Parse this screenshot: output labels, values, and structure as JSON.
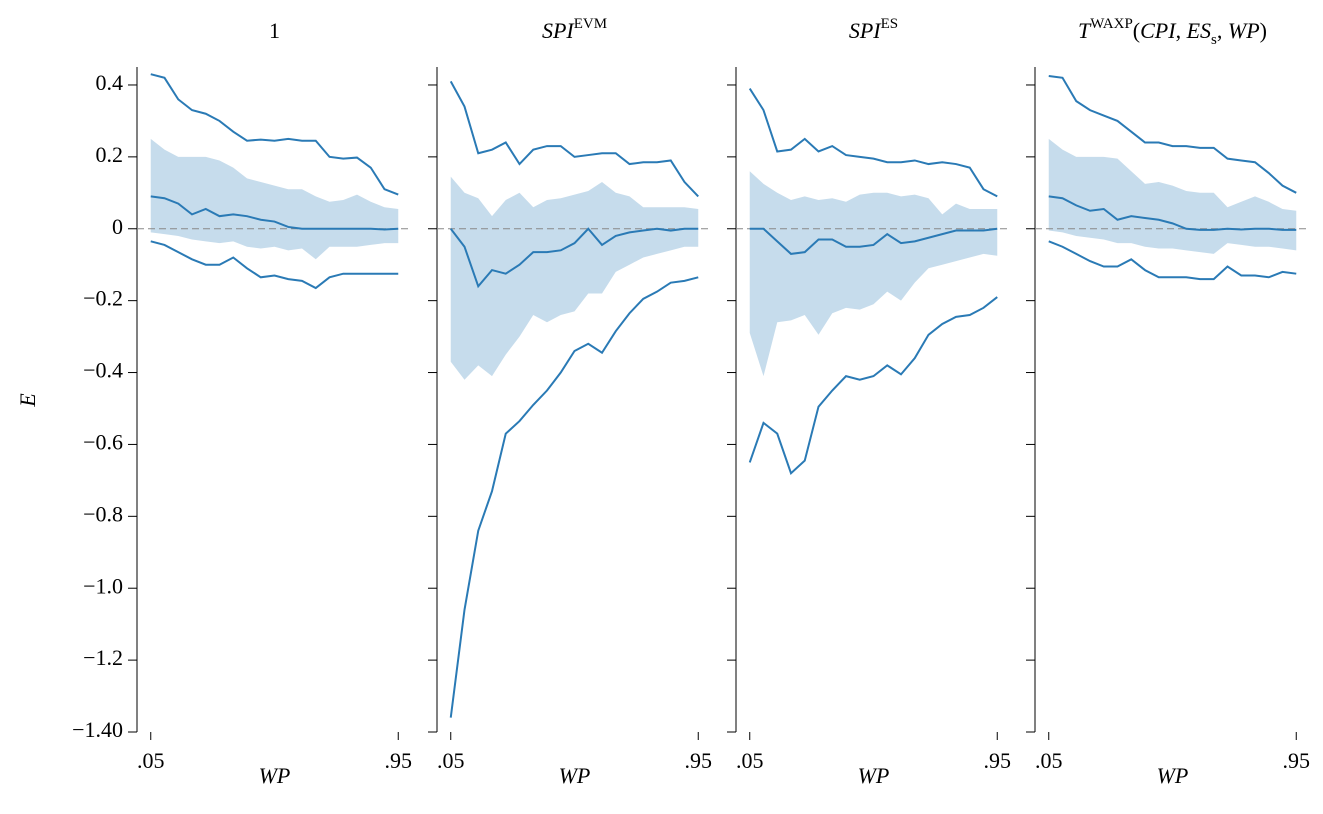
{
  "chart_data": [
    {
      "type": "line",
      "title": [
        {
          "text": "1"
        }
      ],
      "ylabel": "E",
      "xlabel": "WP",
      "x": [
        0.05,
        0.1,
        0.15,
        0.2,
        0.25,
        0.3,
        0.35,
        0.4,
        0.45,
        0.5,
        0.55,
        0.6,
        0.65,
        0.7,
        0.75,
        0.8,
        0.85,
        0.9,
        0.95
      ],
      "xlim": [
        0,
        1
      ],
      "xticks": [
        {
          "value": 0.05,
          "label": ".05"
        },
        {
          "value": 0.95,
          "label": ".95"
        }
      ],
      "ylim": [
        -1.4,
        0.45
      ],
      "yticks": [
        {
          "value": 0.4,
          "label": "0.4"
        },
        {
          "value": 0.2,
          "label": "0.2"
        },
        0,
        {
          "value": -0.2,
          "label": "−0.2"
        },
        {
          "value": -0.4,
          "label": "−0.4"
        },
        {
          "value": -0.6,
          "label": "−0.6"
        },
        {
          "value": -0.8,
          "label": "−0.8"
        },
        {
          "value": -1.0,
          "label": "−1.0"
        },
        {
          "value": -1.2,
          "label": "−1.2"
        },
        {
          "value": -1.4,
          "label": "−1.40"
        }
      ],
      "hline": 0,
      "series": [
        {
          "color": "#c6dcec",
          "upper": [
            0.25,
            0.22,
            0.2,
            0.2,
            0.2,
            0.19,
            0.17,
            0.14,
            0.13,
            0.12,
            0.11,
            0.11,
            0.09,
            0.075,
            0.08,
            0.095,
            0.075,
            0.06,
            0.055
          ],
          "lower": [
            -0.01,
            -0.015,
            -0.02,
            -0.03,
            -0.035,
            -0.04,
            -0.035,
            -0.05,
            -0.055,
            -0.05,
            -0.06,
            -0.055,
            -0.085,
            -0.05,
            -0.05,
            -0.05,
            -0.045,
            -0.04,
            -0.04
          ]
        },
        {
          "color": "#2a7ab5",
          "values": [
            0.43,
            0.42,
            0.36,
            0.33,
            0.32,
            0.3,
            0.27,
            0.245,
            0.248,
            0.245,
            0.25,
            0.245,
            0.245,
            0.2,
            0.195,
            0.198,
            0.17,
            0.11,
            0.095
          ]
        },
        {
          "color": "#2a7ab5",
          "values": [
            0.09,
            0.085,
            0.07,
            0.04,
            0.055,
            0.035,
            0.04,
            0.035,
            0.025,
            0.02,
            0.005,
            0,
            0,
            0,
            0,
            0,
            0,
            -0.002,
            0
          ]
        },
        {
          "color": "#2a7ab5",
          "values": [
            -0.035,
            -0.045,
            -0.065,
            -0.085,
            -0.1,
            -0.1,
            -0.08,
            -0.11,
            -0.135,
            -0.13,
            -0.14,
            -0.145,
            -0.165,
            -0.135,
            -0.125,
            -0.125,
            -0.125,
            -0.125,
            -0.125
          ]
        }
      ]
    },
    {
      "type": "line",
      "title": [
        {
          "text": "SPI",
          "italic": true
        },
        {
          "text": "EVM",
          "pos": "sup"
        }
      ],
      "xlabel": "WP",
      "x": [
        0.05,
        0.1,
        0.15,
        0.2,
        0.25,
        0.3,
        0.35,
        0.4,
        0.45,
        0.5,
        0.55,
        0.6,
        0.65,
        0.7,
        0.75,
        0.8,
        0.85,
        0.9,
        0.95
      ],
      "xlim": [
        0,
        1
      ],
      "xticks": [
        {
          "value": 0.05,
          "label": ".05"
        },
        {
          "value": 0.95,
          "label": ".95"
        }
      ],
      "ylim": [
        -1.4,
        0.45
      ],
      "hline": 0,
      "series": [
        {
          "color": "#c6dcec",
          "upper": [
            0.145,
            0.1,
            0.085,
            0.035,
            0.08,
            0.1,
            0.06,
            0.08,
            0.085,
            0.095,
            0.105,
            0.13,
            0.1,
            0.09,
            0.06,
            0.06,
            0.06,
            0.06,
            0.055
          ],
          "lower": [
            -0.37,
            -0.42,
            -0.38,
            -0.41,
            -0.35,
            -0.3,
            -0.24,
            -0.26,
            -0.24,
            -0.23,
            -0.18,
            -0.18,
            -0.12,
            -0.1,
            -0.08,
            -0.07,
            -0.06,
            -0.05,
            -0.05
          ]
        },
        {
          "color": "#2a7ab5",
          "values": [
            0.41,
            0.34,
            0.21,
            0.22,
            0.24,
            0.18,
            0.22,
            0.23,
            0.23,
            0.2,
            0.205,
            0.21,
            0.21,
            0.18,
            0.185,
            0.185,
            0.19,
            0.13,
            0.09
          ]
        },
        {
          "color": "#2a7ab5",
          "values": [
            0,
            -0.05,
            -0.16,
            -0.115,
            -0.125,
            -0.1,
            -0.065,
            -0.065,
            -0.06,
            -0.04,
            0,
            -0.045,
            -0.02,
            -0.01,
            -0.005,
            0,
            -0.005,
            0,
            0
          ]
        },
        {
          "color": "#2a7ab5",
          "values": [
            -1.36,
            -1.06,
            -0.84,
            -0.73,
            -0.57,
            -0.535,
            -0.49,
            -0.45,
            -0.4,
            -0.34,
            -0.32,
            -0.345,
            -0.285,
            -0.235,
            -0.195,
            -0.175,
            -0.15,
            -0.145,
            -0.135
          ]
        }
      ]
    },
    {
      "type": "line",
      "title": [
        {
          "text": "SPI",
          "italic": true
        },
        {
          "text": "ES",
          "pos": "sup"
        }
      ],
      "xlabel": "WP",
      "x": [
        0.05,
        0.1,
        0.15,
        0.2,
        0.25,
        0.3,
        0.35,
        0.4,
        0.45,
        0.5,
        0.55,
        0.6,
        0.65,
        0.7,
        0.75,
        0.8,
        0.85,
        0.9,
        0.95
      ],
      "xlim": [
        0,
        1
      ],
      "xticks": [
        {
          "value": 0.05,
          "label": ".05"
        },
        {
          "value": 0.95,
          "label": ".95"
        }
      ],
      "ylim": [
        -1.4,
        0.45
      ],
      "hline": 0,
      "series": [
        {
          "color": "#c6dcec",
          "upper": [
            0.16,
            0.125,
            0.1,
            0.08,
            0.09,
            0.08,
            0.085,
            0.075,
            0.095,
            0.1,
            0.1,
            0.09,
            0.095,
            0.085,
            0.04,
            0.07,
            0.055,
            0.055,
            0.055
          ],
          "lower": [
            -0.29,
            -0.41,
            -0.26,
            -0.255,
            -0.24,
            -0.295,
            -0.235,
            -0.22,
            -0.225,
            -0.21,
            -0.175,
            -0.2,
            -0.15,
            -0.11,
            -0.1,
            -0.09,
            -0.08,
            -0.07,
            -0.075
          ]
        },
        {
          "color": "#2a7ab5",
          "values": [
            0.39,
            0.33,
            0.215,
            0.22,
            0.25,
            0.215,
            0.23,
            0.205,
            0.2,
            0.195,
            0.185,
            0.185,
            0.19,
            0.18,
            0.185,
            0.18,
            0.17,
            0.11,
            0.09
          ]
        },
        {
          "color": "#2a7ab5",
          "values": [
            0,
            0,
            -0.035,
            -0.07,
            -0.065,
            -0.03,
            -0.03,
            -0.05,
            -0.05,
            -0.045,
            -0.015,
            -0.04,
            -0.035,
            -0.025,
            -0.015,
            -0.005,
            -0.005,
            -0.005,
            0
          ]
        },
        {
          "color": "#2a7ab5",
          "values": [
            -0.65,
            -0.54,
            -0.57,
            -0.68,
            -0.645,
            -0.495,
            -0.45,
            -0.41,
            -0.42,
            -0.41,
            -0.38,
            -0.405,
            -0.36,
            -0.295,
            -0.265,
            -0.245,
            -0.24,
            -0.22,
            -0.19
          ]
        }
      ]
    },
    {
      "type": "line",
      "title": [
        {
          "text": "T",
          "italic": true
        },
        {
          "text": "WAXP",
          "pos": "sup"
        },
        {
          "text": "("
        },
        {
          "text": "CPI",
          "italic": true
        },
        {
          "text": ", "
        },
        {
          "text": "ES",
          "italic": true
        },
        {
          "text": "s",
          "pos": "sub"
        },
        {
          "text": ", "
        },
        {
          "text": "WP",
          "italic": true
        },
        {
          "text": ")"
        }
      ],
      "xlabel": "WP",
      "x": [
        0.05,
        0.1,
        0.15,
        0.2,
        0.25,
        0.3,
        0.35,
        0.4,
        0.45,
        0.5,
        0.55,
        0.6,
        0.65,
        0.7,
        0.75,
        0.8,
        0.85,
        0.9,
        0.95
      ],
      "xlim": [
        0,
        1
      ],
      "xticks": [
        {
          "value": 0.05,
          "label": ".05"
        },
        {
          "value": 0.95,
          "label": ".95"
        }
      ],
      "ylim": [
        -1.4,
        0.45
      ],
      "hline": 0,
      "series": [
        {
          "color": "#c6dcec",
          "upper": [
            0.25,
            0.22,
            0.2,
            0.2,
            0.2,
            0.195,
            0.16,
            0.125,
            0.13,
            0.12,
            0.105,
            0.1,
            0.1,
            0.06,
            0.075,
            0.09,
            0.075,
            0.055,
            0.05
          ],
          "lower": [
            -0.005,
            -0.01,
            -0.02,
            -0.025,
            -0.03,
            -0.04,
            -0.04,
            -0.05,
            -0.055,
            -0.055,
            -0.06,
            -0.065,
            -0.07,
            -0.04,
            -0.045,
            -0.05,
            -0.05,
            -0.055,
            -0.06
          ]
        },
        {
          "color": "#2a7ab5",
          "values": [
            0.425,
            0.42,
            0.355,
            0.33,
            0.315,
            0.3,
            0.27,
            0.24,
            0.24,
            0.23,
            0.23,
            0.225,
            0.225,
            0.195,
            0.19,
            0.185,
            0.155,
            0.12,
            0.1
          ]
        },
        {
          "color": "#2a7ab5",
          "values": [
            0.09,
            0.085,
            0.065,
            0.05,
            0.055,
            0.025,
            0.035,
            0.03,
            0.025,
            0.015,
            0,
            -0.003,
            -0.003,
            0,
            -0.002,
            0,
            0,
            -0.003,
            -0.003
          ]
        },
        {
          "color": "#2a7ab5",
          "values": [
            -0.035,
            -0.05,
            -0.07,
            -0.09,
            -0.105,
            -0.105,
            -0.085,
            -0.115,
            -0.135,
            -0.135,
            -0.135,
            -0.14,
            -0.14,
            -0.105,
            -0.13,
            -0.13,
            -0.135,
            -0.12,
            -0.125
          ]
        }
      ]
    }
  ]
}
